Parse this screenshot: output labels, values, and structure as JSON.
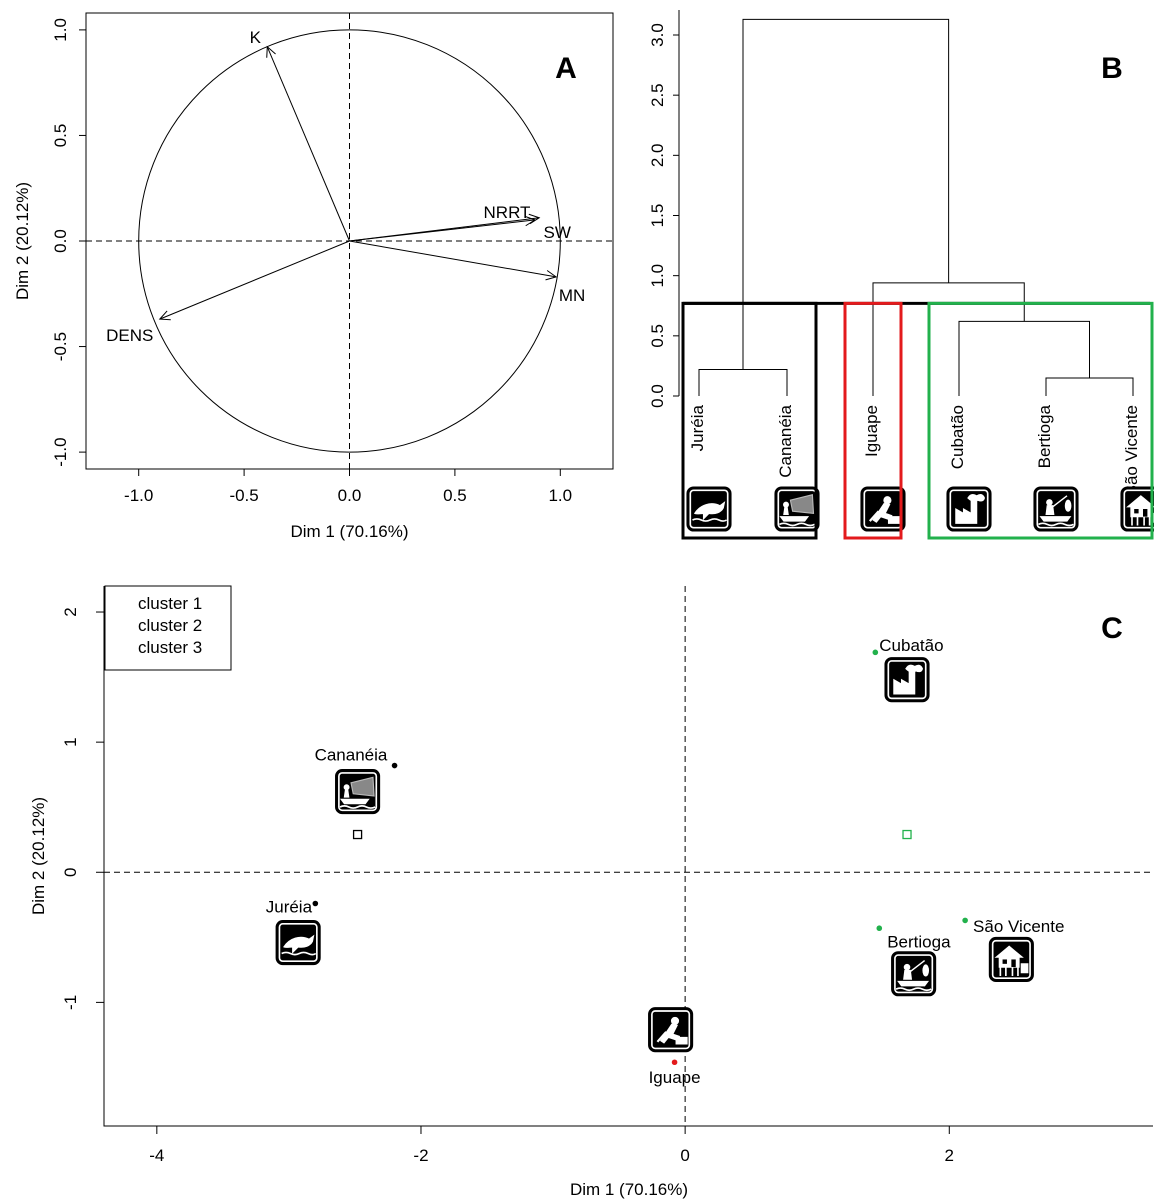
{
  "colors": {
    "cluster1": "#000000",
    "cluster2": "#e31a1c",
    "cluster3": "#22b14c"
  },
  "chart_data": [
    {
      "panel": "A",
      "type": "scatter",
      "subtype": "pca-variable-correlation-circle",
      "panel_label": "A",
      "xlabel": "Dim 1 (70.16%)",
      "ylabel": "Dim 2 (20.12%)",
      "xlim": [
        -1.25,
        1.25
      ],
      "ylim": [
        -1.08,
        1.08
      ],
      "xticks": [
        -1.0,
        -0.5,
        0.0,
        0.5,
        1.0
      ],
      "xtick_labels": [
        "-1.0",
        "-0.5",
        "0.0",
        "0.5",
        "1.0"
      ],
      "yticks": [
        -1.0,
        -0.5,
        0.0,
        0.5,
        1.0
      ],
      "ytick_labels": [
        "-1.0",
        "-0.5",
        "0.0",
        "0.5",
        "1.0"
      ],
      "unit_circle": true,
      "reference_lines": "dashed at x=0 and y=0",
      "vectors": [
        {
          "name": "K",
          "x": -0.39,
          "y": 0.92
        },
        {
          "name": "NRRT",
          "x": 0.88,
          "y": 0.1
        },
        {
          "name": "SW",
          "x": 0.9,
          "y": 0.11
        },
        {
          "name": "MN",
          "x": 0.98,
          "y": -0.17
        },
        {
          "name": "DENS",
          "x": -0.9,
          "y": -0.37
        }
      ]
    },
    {
      "panel": "B",
      "type": "other",
      "subtype": "dendrogram",
      "panel_label": "B",
      "ylim": [
        0,
        3.2
      ],
      "yticks": [
        0.0,
        0.5,
        1.0,
        1.5,
        2.0,
        2.5,
        3.0
      ],
      "ytick_labels": [
        "0.0",
        "0.5",
        "1.0",
        "1.5",
        "2.0",
        "2.5",
        "3.0"
      ],
      "leaves": [
        "Juréia",
        "Cananéia",
        "Iguape",
        "Cubatão",
        "Bertioga",
        "São Vicente"
      ],
      "leaf_icons": [
        "dolphin-icon",
        "fisher-boat-icon",
        "digger-icon",
        "factory-icon",
        "angler-boat-icon",
        "stilt-house-icon"
      ],
      "merges": [
        {
          "left": "Bertioga",
          "right": "São Vicente",
          "height": 0.15
        },
        {
          "left": "Juréia",
          "right": "Cananéia",
          "height": 0.22
        },
        {
          "left": "Cubatão",
          "right": "Bertioga+São Vicente",
          "height": 0.62
        },
        {
          "left": "Iguape",
          "right": "Cubatão+Bertioga+São Vicente",
          "height": 0.94
        },
        {
          "left": "Juréia+Cananéia",
          "right": "Iguape+Cubatão+Bertioga+São Vicente",
          "height": 3.13
        }
      ],
      "cut_height": 0.77,
      "cluster_boxes": [
        {
          "cluster": "cluster 1",
          "members": [
            "Juréia",
            "Cananéia"
          ],
          "color": "#000000"
        },
        {
          "cluster": "cluster 2",
          "members": [
            "Iguape"
          ],
          "color": "#e31a1c"
        },
        {
          "cluster": "cluster 3",
          "members": [
            "Cubatão",
            "Bertioga",
            "São Vicente"
          ],
          "color": "#22b14c"
        }
      ]
    },
    {
      "panel": "C",
      "type": "scatter",
      "subtype": "pca-individuals-factor-map",
      "panel_label": "C",
      "xlabel": "Dim 1 (70.16%)",
      "ylabel": "Dim 2 (20.12%)",
      "xlim": [
        -4.4,
        3.55
      ],
      "ylim": [
        -1.95,
        2.2
      ],
      "xticks": [
        -4,
        -2,
        0,
        2
      ],
      "xtick_labels": [
        "-4",
        "-2",
        "0",
        "2"
      ],
      "yticks": [
        -1,
        0,
        1,
        2
      ],
      "ytick_labels": [
        "-1",
        "0",
        "1",
        "2"
      ],
      "reference_lines": "dashed at x=0 and y=0",
      "legend": {
        "position": "top-left",
        "entries": [
          {
            "label": "cluster 1",
            "color": "#000000"
          },
          {
            "label": "cluster 2",
            "color": "#e31a1c"
          },
          {
            "label": "cluster 3",
            "color": "#22b14c"
          }
        ]
      },
      "points": [
        {
          "label": "Cananéia",
          "cluster": 1,
          "x": -2.2,
          "y": 0.82,
          "icon": "fisher-boat-icon"
        },
        {
          "label": "Juréia",
          "cluster": 1,
          "x": -2.8,
          "y": -0.24,
          "icon": "dolphin-icon"
        },
        {
          "label": "Iguape",
          "cluster": 2,
          "x": -0.08,
          "y": -1.46,
          "icon": "digger-icon"
        },
        {
          "label": "Cubatão",
          "cluster": 3,
          "x": 1.44,
          "y": 1.69,
          "icon": "factory-icon"
        },
        {
          "label": "Bertioga",
          "cluster": 3,
          "x": 1.47,
          "y": -0.43,
          "icon": "angler-boat-icon"
        },
        {
          "label": "São Vicente",
          "cluster": 3,
          "x": 2.12,
          "y": -0.37,
          "icon": "stilt-house-icon"
        }
      ],
      "centroids": [
        {
          "cluster": 1,
          "x": -2.48,
          "y": 0.29
        },
        {
          "cluster": 3,
          "x": 1.68,
          "y": 0.29
        }
      ]
    }
  ]
}
